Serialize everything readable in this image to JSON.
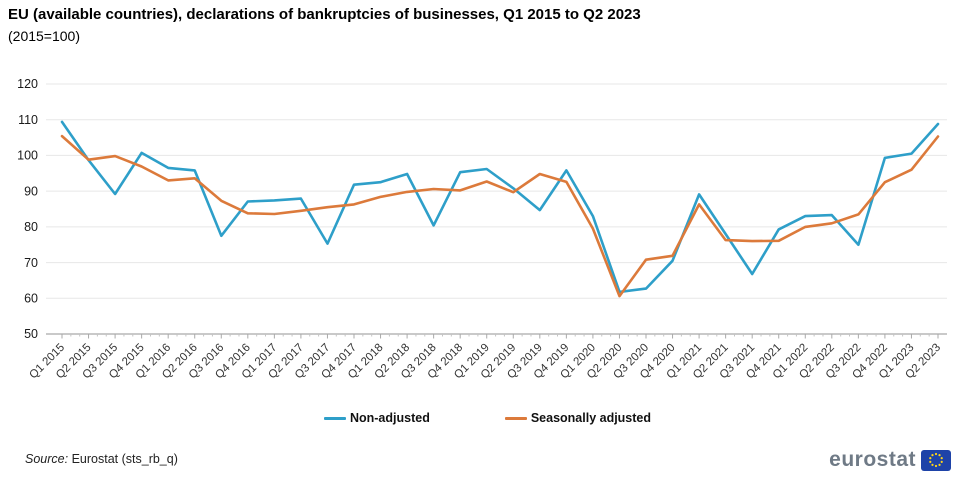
{
  "header": {
    "title": "EU (available countries), declarations of bankruptcies of businesses, Q1 2015 to Q2 2023",
    "subtitle": "(2015=100)"
  },
  "legend": {
    "items": [
      {
        "label": "Non-adjusted",
        "color": "#2e9fc9"
      },
      {
        "label": "Seasonally adjusted",
        "color": "#dc7a3b"
      }
    ]
  },
  "source": {
    "prefix": "Source:",
    "text": "Eurostat (sts_rb_q)"
  },
  "logo": {
    "text": "eurostat",
    "flag_color": "#1e43a8",
    "star_color": "#ffd617"
  },
  "colors": {
    "grid": "#e7e7e7",
    "axis": "#a9a9a9",
    "tick_label": "#333333",
    "non_adjusted": "#2e9fc9",
    "seasonally_adjusted": "#dc7a3b"
  },
  "chart_data": {
    "type": "line",
    "title": "EU (available countries), declarations of bankruptcies of businesses, Q1 2015 to Q2 2023 (2015=100)",
    "categories": [
      "Q1 2015",
      "Q2 2015",
      "Q3 2015",
      "Q4 2015",
      "Q1 2016",
      "Q2 2016",
      "Q3 2016",
      "Q4 2016",
      "Q1 2017",
      "Q2 2017",
      "Q3 2017",
      "Q4 2017",
      "Q1 2018",
      "Q2 2018",
      "Q3 2018",
      "Q4 2018",
      "Q1 2019",
      "Q2 2019",
      "Q3 2019",
      "Q4 2019",
      "Q1 2020",
      "Q2 2020",
      "Q3 2020",
      "Q4 2020",
      "Q1 2021",
      "Q2 2021",
      "Q3 2021",
      "Q4 2021",
      "Q1 2022",
      "Q2 2022",
      "Q3 2022",
      "Q4 2022",
      "Q1 2023",
      "Q2 2023"
    ],
    "series": [
      {
        "name": "Non-adjusted",
        "color": "#2e9fc9",
        "values": [
          109.4,
          98.7,
          89.2,
          100.7,
          96.5,
          95.8,
          77.5,
          87.1,
          87.4,
          87.9,
          75.3,
          91.8,
          92.5,
          94.8,
          80.4,
          95.3,
          96.2,
          90.8,
          84.7,
          95.8,
          83.0,
          61.8,
          62.7,
          70.5,
          89.1,
          78.0,
          66.8,
          79.3,
          83.0,
          83.3,
          75.0,
          99.3,
          100.5,
          108.8
        ]
      },
      {
        "name": "Seasonally adjusted",
        "color": "#dc7a3b",
        "values": [
          105.4,
          98.8,
          99.8,
          96.9,
          93.0,
          93.6,
          87.3,
          83.8,
          83.6,
          84.5,
          85.5,
          86.3,
          88.4,
          89.8,
          90.6,
          90.2,
          92.7,
          89.7,
          94.8,
          92.6,
          79.5,
          60.6,
          70.8,
          71.9,
          86.3,
          76.3,
          76.0,
          76.1,
          80.0,
          81.0,
          83.5,
          92.5,
          96.0,
          105.3
        ]
      }
    ],
    "xlabel": "",
    "ylabel": "",
    "ylim": [
      50,
      120
    ],
    "yticks": [
      50,
      60,
      70,
      80,
      90,
      100,
      110,
      120
    ],
    "grid": true,
    "legend_position": "bottom"
  }
}
